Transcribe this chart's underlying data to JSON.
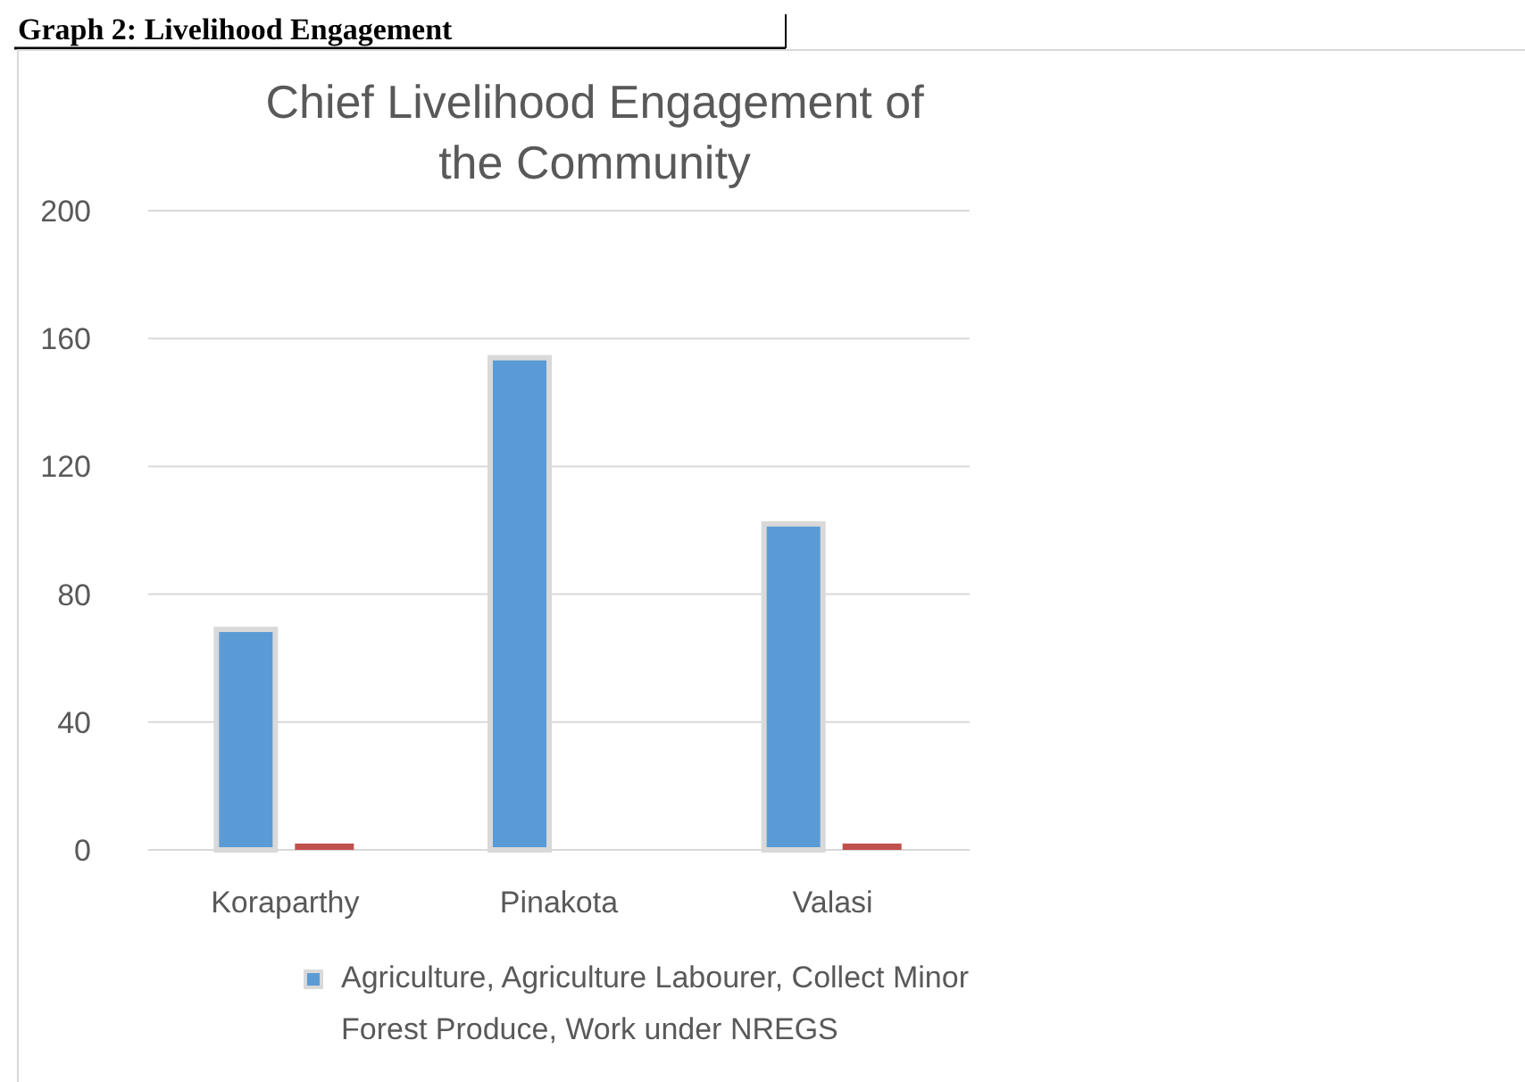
{
  "chart_data": {
    "type": "bar",
    "title": "Chief Livelihood Engagement of the Community",
    "annotations": [
      "Graph 2: Livelihood Engagement"
    ],
    "categories": [
      "Koraparthy",
      "Pinakota",
      "Valasi"
    ],
    "series": [
      {
        "name": "Agriculture, Agriculture Labourer, Collect Minor Forest Produce, Work under NREGS",
        "color": "#5b9bd5",
        "values": [
          69,
          154,
          102
        ]
      },
      {
        "color": "#c0504d",
        "values": [
          2,
          0,
          2
        ]
      }
    ],
    "ylim": [
      0,
      200
    ],
    "yticks": [
      0,
      40,
      80,
      120,
      160,
      200
    ],
    "grid": "y",
    "legend": "bottom"
  }
}
